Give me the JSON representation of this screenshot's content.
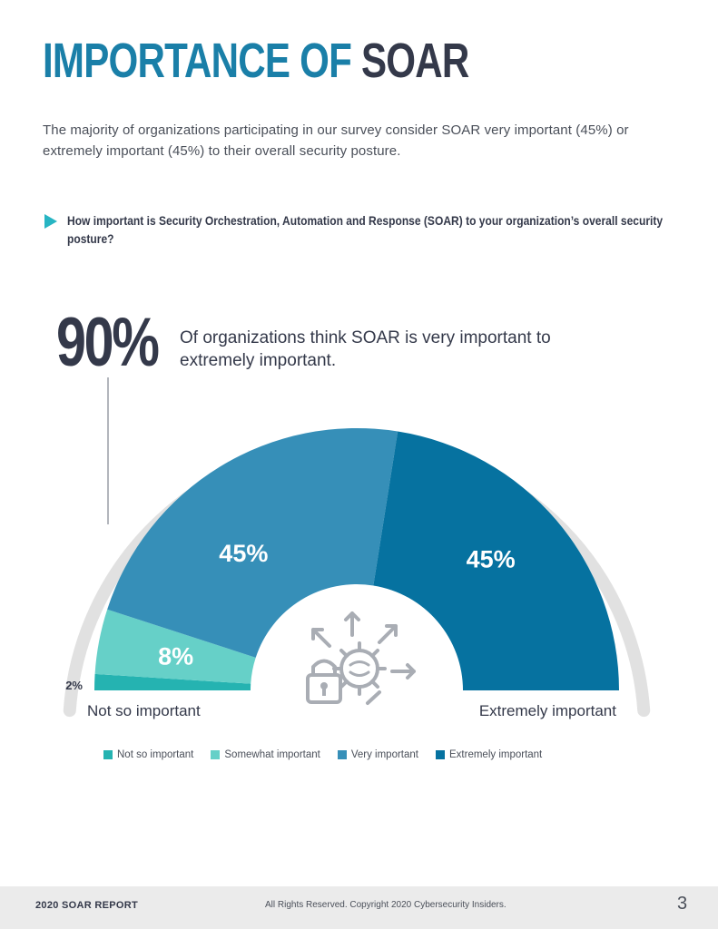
{
  "page": {
    "title_part1": "IMPORTANCE OF ",
    "title_part2": "SOAR",
    "intro": "The majority of organizations participating in our survey consider SOAR very important (45%) or extremely important (45%) to their overall security posture.",
    "question": "How important is Security Orchestration, Automation and Response (SOAR) to your organization’s overall security posture?",
    "highlight_value": "90%",
    "highlight_text": "Of organizations think SOAR is very important to extremely important."
  },
  "chart_data": {
    "type": "pie",
    "shape": "half-donut",
    "categories": [
      "Not so important",
      "Somewhat important",
      "Very important",
      "Extremely important"
    ],
    "values": [
      2,
      8,
      45,
      45
    ],
    "value_labels": [
      "2%",
      "8%",
      "45%",
      "45%"
    ],
    "colors": [
      "#25b3b1",
      "#66d0c8",
      "#368fb8",
      "#0672a0"
    ],
    "scale_left_label": "Not so important",
    "scale_right_label": "Extremely important",
    "legend": [
      "Not so important",
      "Somewhat important",
      "Very important",
      "Extremely important"
    ]
  },
  "footer": {
    "left": "2020 SOAR REPORT",
    "center": "All Rights Reserved. Copyright 2020 Cybersecurity Insiders.",
    "page_number": "3"
  }
}
